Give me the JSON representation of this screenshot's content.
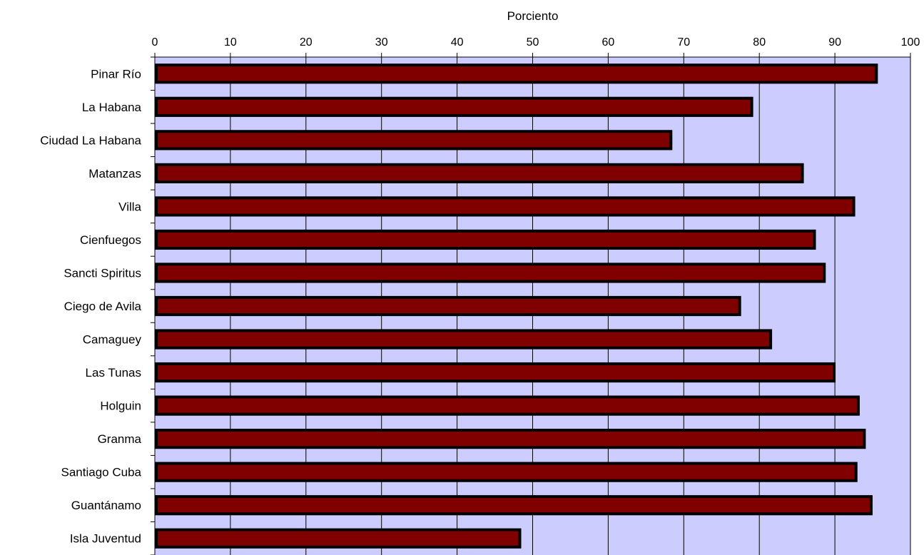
{
  "chart_data": {
    "type": "bar",
    "orientation": "horizontal",
    "xlabel": "Porciento",
    "xlabel_position": "top",
    "xlim": [
      0,
      100
    ],
    "xticks": [
      0,
      10,
      20,
      30,
      40,
      50,
      60,
      70,
      80,
      90,
      100
    ],
    "grid": true,
    "legend": false,
    "categories": [
      "Pinar Río",
      "La Habana",
      "Ciudad La Habana",
      "Matanzas",
      "Villa",
      "Cienfuegos",
      "Sancti Spiritus",
      "Ciego de Avila",
      "Camaguey",
      "Las Tunas",
      "Holguin",
      "Granma",
      "Santiago Cuba",
      "Guantánamo",
      "Isla Juventud"
    ],
    "values": [
      95.5,
      79.0,
      68.3,
      85.7,
      92.5,
      87.3,
      88.6,
      77.4,
      81.5,
      89.9,
      93.1,
      93.9,
      92.8,
      94.8,
      48.3
    ],
    "colors": {
      "plot_background": "#ccccff",
      "bar_fill": "#800000",
      "bar_border": "#000000",
      "gridline": "#000000"
    }
  }
}
